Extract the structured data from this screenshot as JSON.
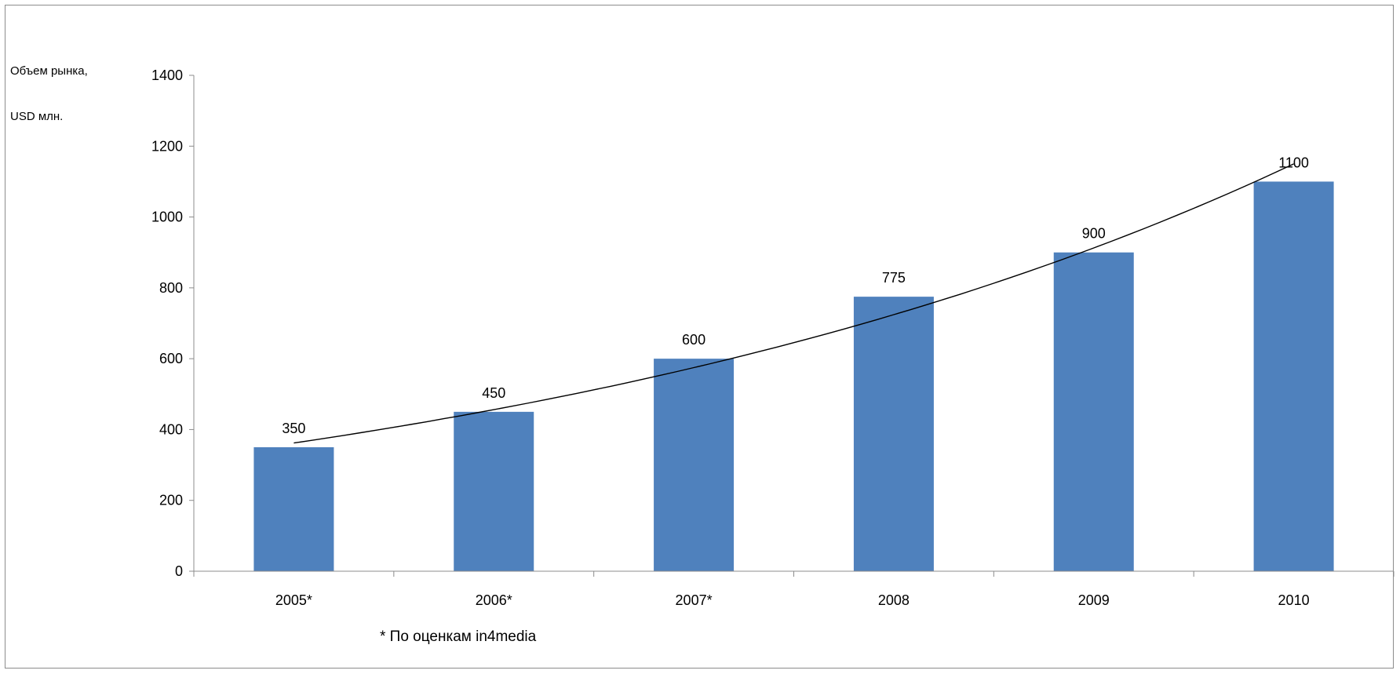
{
  "chart_data": {
    "type": "bar",
    "ylabel_lines": [
      "Объем рынка,",
      "USD млн."
    ],
    "categories": [
      "2005*",
      "2006*",
      "2007*",
      "2008",
      "2009",
      "2010"
    ],
    "values": [
      350,
      450,
      600,
      775,
      900,
      1100
    ],
    "data_labels": [
      "350",
      "450",
      "600",
      "775",
      "900",
      "1100"
    ],
    "ylim": [
      0,
      1400
    ],
    "yticks": [
      0,
      200,
      400,
      600,
      800,
      1000,
      1200,
      1400
    ],
    "trendline": {
      "type": "exponential",
      "start_value": 362,
      "end_value": 1150
    },
    "grid": false,
    "legend": "none",
    "bar_color": "#4F81BD",
    "footnote": "* По оценкам in4media"
  }
}
